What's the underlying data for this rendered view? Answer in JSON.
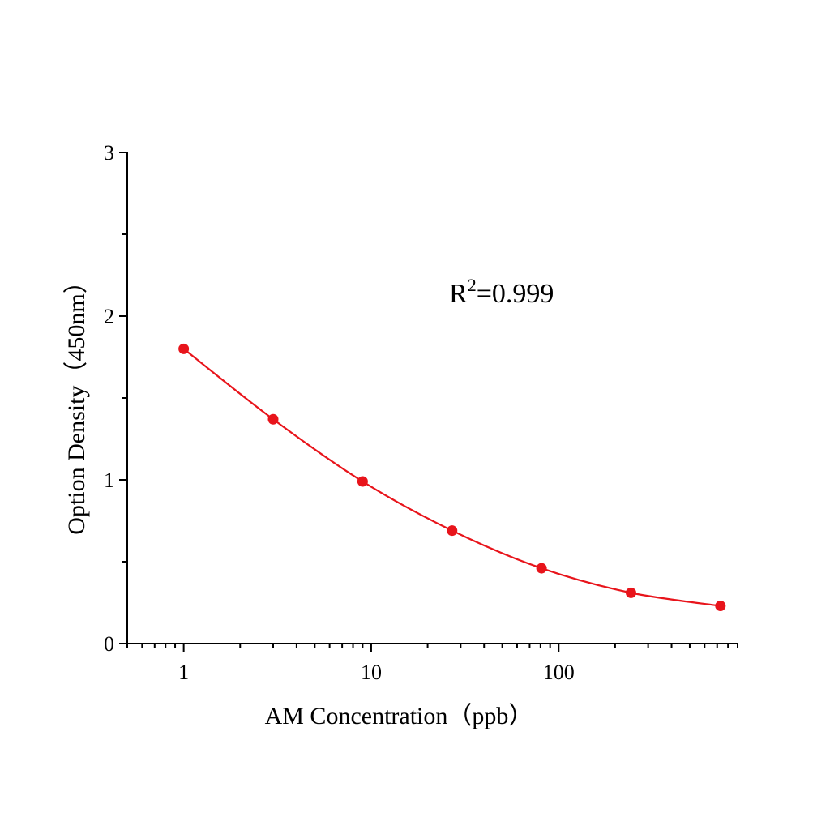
{
  "chart_data": {
    "type": "scatter",
    "title": "",
    "xlabel": "AM Concentration（ppb）",
    "ylabel": "Option Density（450nm）",
    "x_scale": "log",
    "xlim": [
      0.5,
      900
    ],
    "ylim": [
      0,
      3
    ],
    "x_ticks": [
      1,
      10,
      100
    ],
    "x_tick_labels": [
      "1",
      "10",
      "100"
    ],
    "y_ticks": [
      0,
      1,
      2,
      3
    ],
    "y_tick_labels": [
      "0",
      "1",
      "2",
      "3"
    ],
    "grid": false,
    "legend": "none",
    "annotation": {
      "base": "R",
      "sup": "2",
      "rest": "=0.999"
    },
    "series": [
      {
        "color": "#e8141b",
        "fit_line": true,
        "points": [
          {
            "x": 1,
            "y": 1.8
          },
          {
            "x": 3,
            "y": 1.37
          },
          {
            "x": 9,
            "y": 0.99
          },
          {
            "x": 27,
            "y": 0.69
          },
          {
            "x": 81,
            "y": 0.46
          },
          {
            "x": 243,
            "y": 0.31
          },
          {
            "x": 729,
            "y": 0.23
          }
        ]
      }
    ]
  }
}
